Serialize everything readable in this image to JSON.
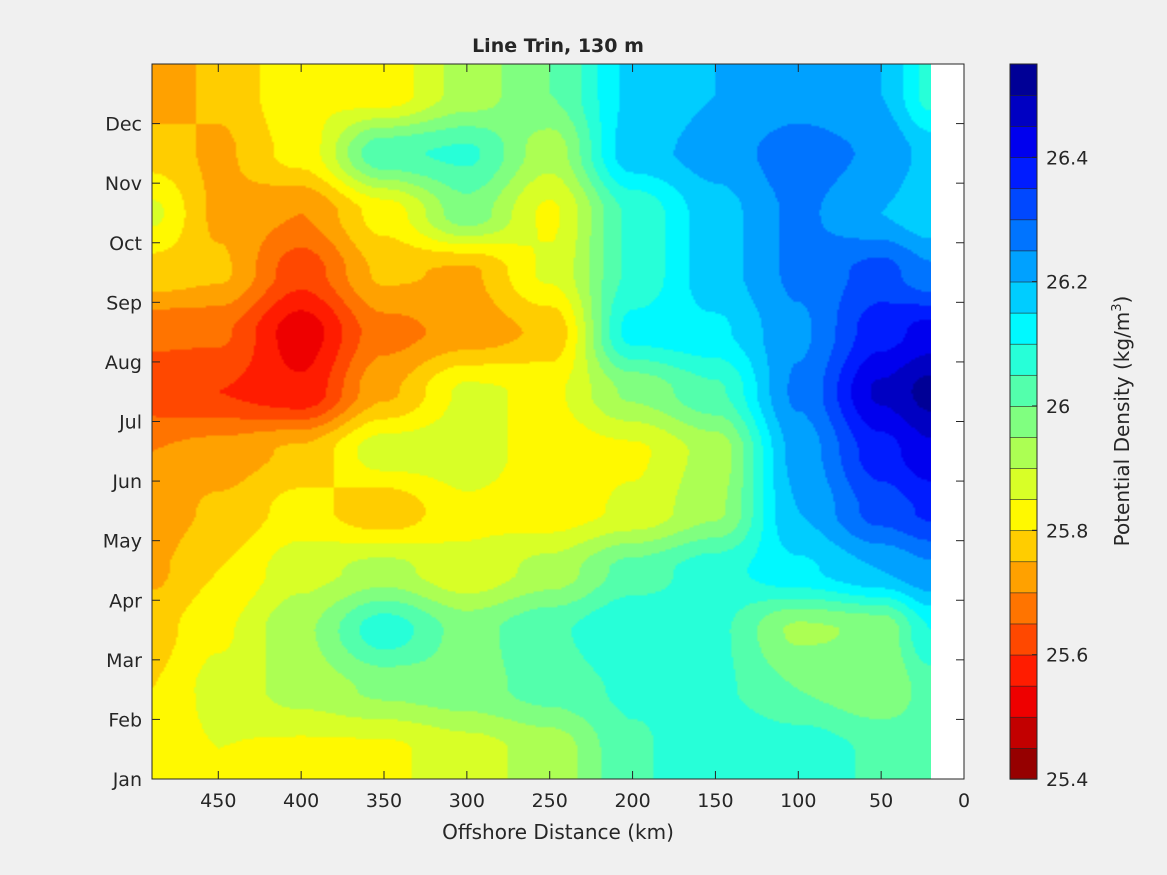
{
  "chart_data": {
    "type": "heatmap",
    "subtype": "filled-contour",
    "title": "Line Trin, 130 m",
    "xlabel": "Offshore Distance (km)",
    "ylabel": "",
    "x_axis_reversed": true,
    "xlim": [
      490,
      0
    ],
    "ylim": [
      "Jan",
      "end of Dec"
    ],
    "x_ticks": [
      450,
      400,
      350,
      300,
      250,
      200,
      150,
      100,
      50,
      0
    ],
    "y_ticks": [
      "Jan",
      "Feb",
      "Mar",
      "Apr",
      "May",
      "Jun",
      "Jul",
      "Aug",
      "Sep",
      "Oct",
      "Nov",
      "Dec"
    ],
    "grid": false,
    "no_data_region_km": [
      0,
      20
    ],
    "colormap": "jet",
    "colorbar": {
      "label": "Potential Density (kg/m",
      "label_superscript": "3",
      "label_suffix": ")",
      "min": 25.4,
      "max": 26.55,
      "step": 0.05,
      "tick_labels": [
        "25.4",
        "25.6",
        "25.8",
        "26",
        "26.2",
        "26.4"
      ]
    },
    "density_grid": {
      "distance_km": [
        490,
        450,
        400,
        350,
        300,
        250,
        200,
        150,
        100,
        50,
        20
      ],
      "months": [
        "Jan",
        "Feb",
        "Mar",
        "Apr",
        "May",
        "Jun",
        "Jul",
        "Aug",
        "Sep",
        "Oct",
        "Nov",
        "Dec"
      ],
      "values": [
        [
          25.82,
          25.85,
          25.84,
          25.84,
          25.88,
          25.92,
          26.04,
          26.1,
          26.08,
          26.04,
          26.02
        ],
        [
          25.8,
          25.87,
          25.92,
          25.96,
          25.98,
          26.02,
          26.06,
          26.06,
          26.0,
          25.96,
          26.02
        ],
        [
          25.78,
          25.84,
          25.94,
          26.08,
          25.98,
          26.04,
          26.1,
          26.06,
          25.94,
          25.96,
          26.1
        ],
        [
          25.74,
          25.8,
          25.88,
          25.92,
          25.86,
          25.92,
          26.02,
          26.08,
          26.14,
          26.2,
          26.24
        ],
        [
          25.72,
          25.76,
          25.82,
          25.76,
          25.84,
          25.82,
          25.86,
          25.94,
          26.2,
          26.32,
          26.36
        ],
        [
          25.7,
          25.72,
          25.76,
          25.88,
          25.88,
          25.82,
          25.84,
          25.92,
          26.22,
          26.38,
          26.44
        ],
        [
          25.62,
          25.6,
          25.56,
          25.74,
          25.86,
          25.84,
          25.96,
          26.04,
          26.26,
          26.46,
          26.52
        ],
        [
          25.66,
          25.66,
          25.52,
          25.68,
          25.72,
          25.76,
          26.12,
          26.14,
          26.24,
          26.38,
          26.42
        ],
        [
          25.78,
          25.76,
          25.62,
          25.76,
          25.74,
          25.86,
          26.06,
          26.18,
          26.26,
          26.32,
          26.26
        ],
        [
          25.86,
          25.74,
          25.7,
          25.82,
          25.98,
          25.84,
          26.06,
          26.18,
          26.26,
          26.2,
          26.16
        ],
        [
          25.78,
          25.74,
          25.82,
          26.04,
          26.06,
          25.92,
          26.18,
          26.22,
          26.28,
          26.24,
          26.18
        ],
        [
          25.72,
          25.76,
          25.84,
          25.82,
          25.92,
          26.0,
          26.16,
          26.2,
          26.22,
          26.2,
          26.08
        ]
      ]
    }
  }
}
